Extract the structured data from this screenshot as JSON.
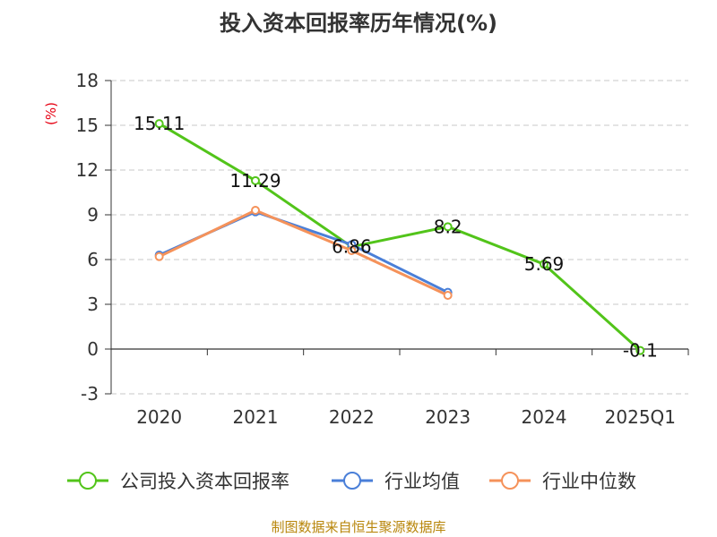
{
  "chart_data": {
    "type": "line",
    "title": "投入资本回报率历年情况(%)",
    "ylabel": "(%)",
    "categories": [
      "2020",
      "2021",
      "2022",
      "2023",
      "2024",
      "2025Q1"
    ],
    "ylim": [
      -3,
      18
    ],
    "yticks": [
      18,
      15,
      12,
      9,
      6,
      3,
      0,
      -3
    ],
    "grid": true,
    "legend_position": "bottom",
    "series": [
      {
        "name": "公司投入资本回报率",
        "color": "#52c41a",
        "values": [
          15.11,
          11.29,
          6.86,
          8.2,
          5.69,
          -0.1
        ],
        "labels": [
          "15.11",
          "11.29",
          "6.86",
          "8.2",
          "5.69",
          "-0.1"
        ]
      },
      {
        "name": "行业均值",
        "color": "#4a7fd8",
        "values": [
          6.3,
          9.2,
          7.0,
          3.8,
          null,
          null
        ]
      },
      {
        "name": "行业中位数",
        "color": "#f5925a",
        "values": [
          6.2,
          9.3,
          6.6,
          3.6,
          null,
          null
        ]
      }
    ]
  },
  "source": "制图数据来自恒生聚源数据库"
}
